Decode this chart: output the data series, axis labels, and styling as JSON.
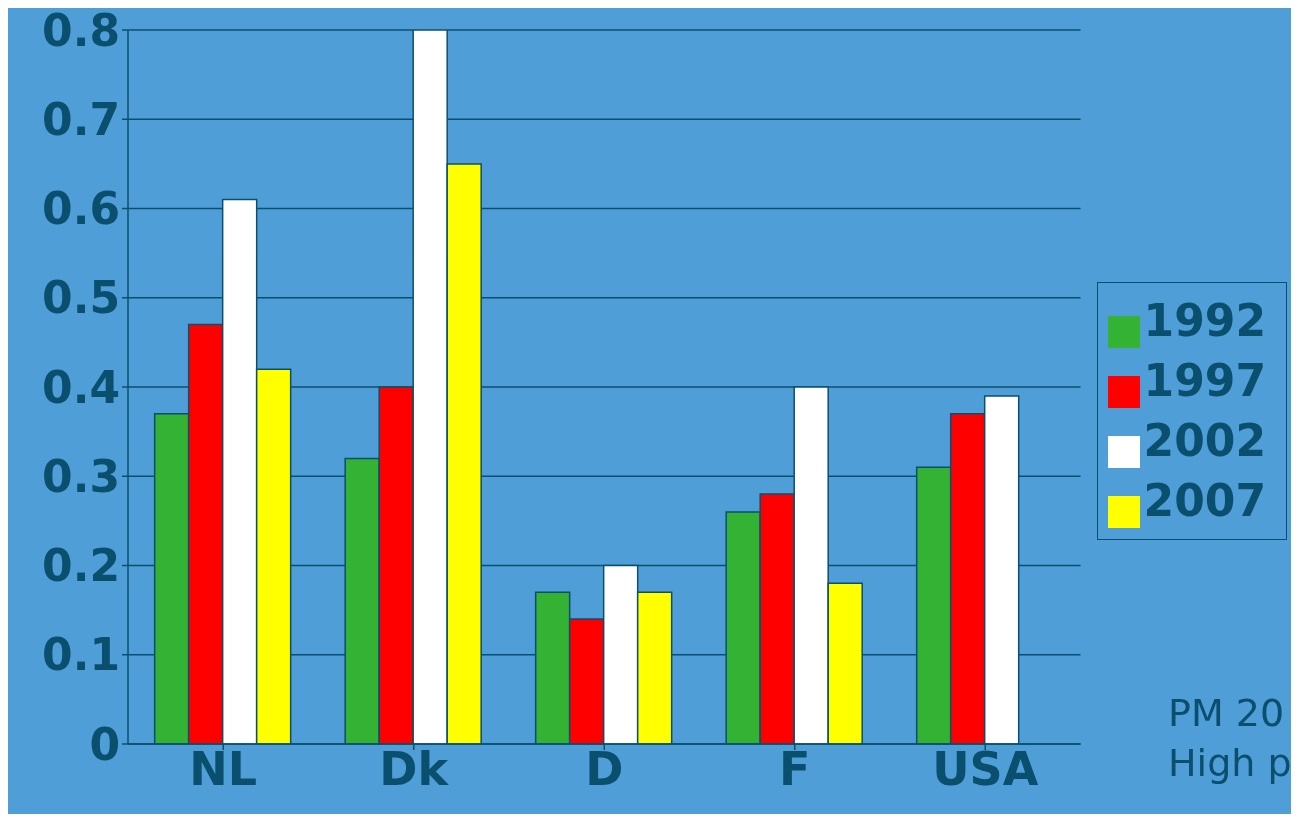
{
  "chart_data": {
    "type": "bar",
    "categories": [
      "NL",
      "Dk",
      "D",
      "F",
      "USA"
    ],
    "series": [
      {
        "name": "1992",
        "color": "#33b233",
        "values": [
          0.37,
          0.32,
          0.17,
          0.26,
          0.31
        ]
      },
      {
        "name": "1997",
        "color": "#ff0000",
        "values": [
          0.47,
          0.4,
          0.14,
          0.28,
          0.37
        ]
      },
      {
        "name": "2002",
        "color": "#ffffff",
        "values": [
          0.61,
          0.8,
          0.2,
          0.4,
          0.39
        ]
      },
      {
        "name": "2007",
        "color": "#ffff00",
        "values": [
          0.42,
          0.65,
          0.17,
          0.18,
          null
        ]
      }
    ],
    "ylim": [
      0,
      0.8
    ],
    "yticks": [
      0,
      0.1,
      0.2,
      0.3,
      0.4,
      0.5,
      0.6,
      0.7,
      0.8
    ],
    "grid": "y",
    "legend": "right",
    "annotations": [
      "PM 20",
      "High p"
    ]
  }
}
